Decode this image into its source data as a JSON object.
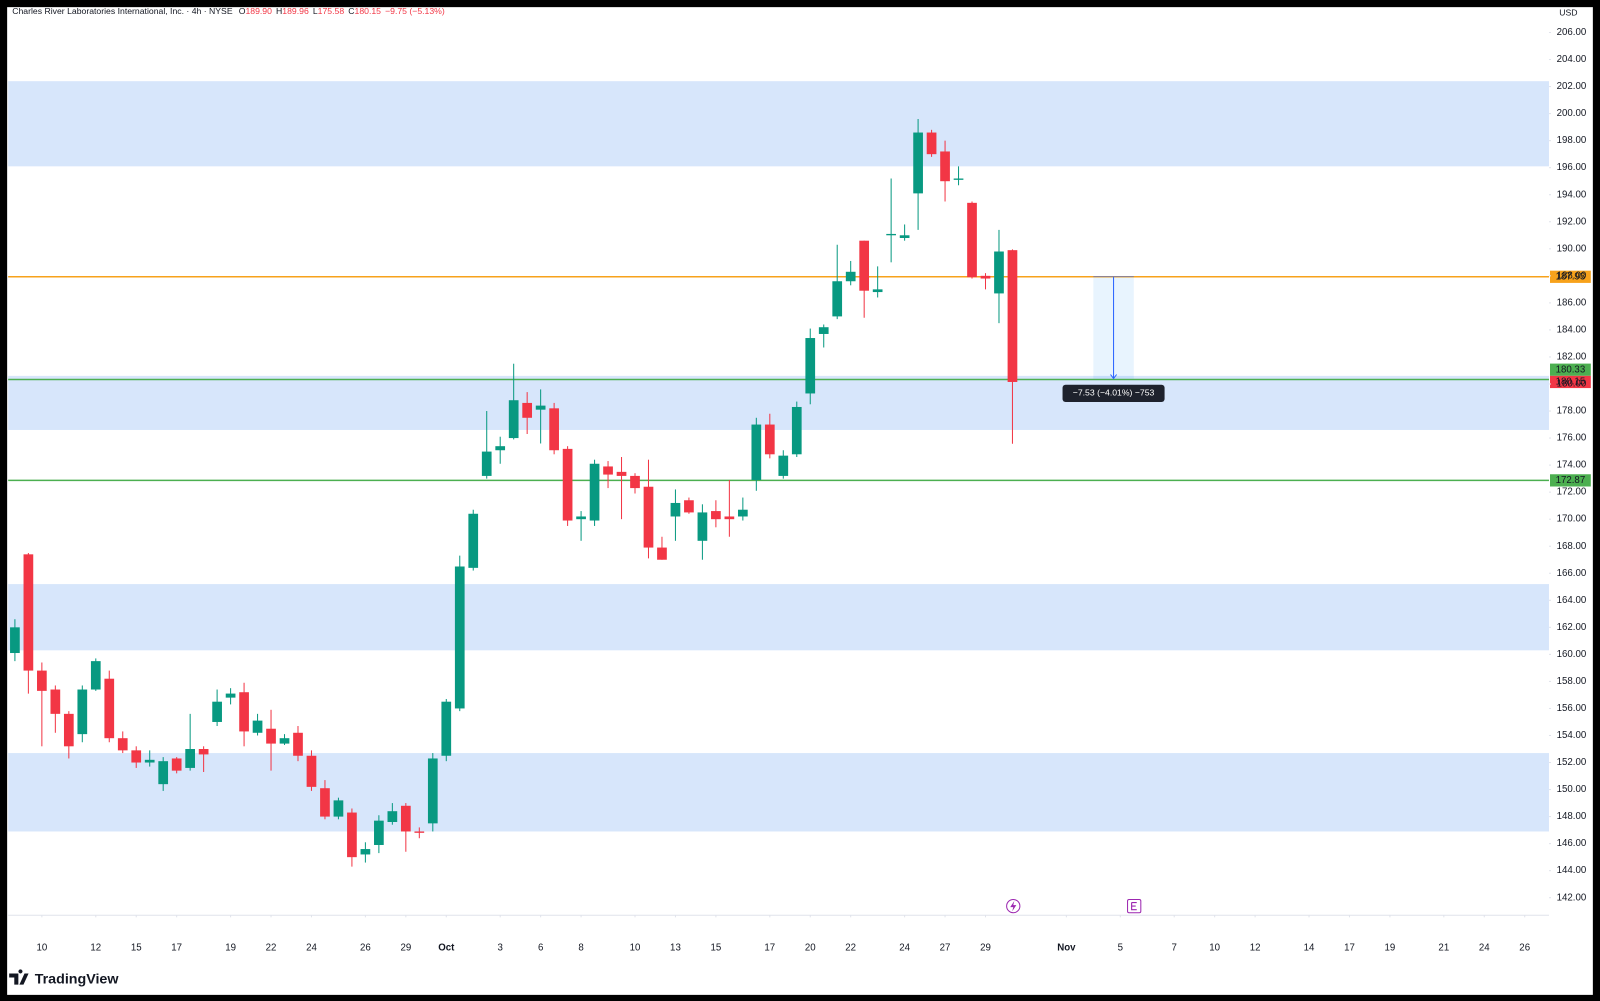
{
  "chart_data": {
    "type": "candlestick",
    "title": "Charles River Laboratories International, Inc. · 4h · NYSE",
    "ohlc_labels": [
      "O",
      "H",
      "L",
      "C"
    ],
    "ohlc_values": [
      "189.90",
      "189.96",
      "175.58",
      "180.15"
    ],
    "change": "−9.75 (−5.13%)",
    "currency": "USD",
    "open": [
      160.1,
      167.4,
      158.8,
      157.4,
      155.6,
      154.1,
      157.4,
      158.2,
      153.8,
      152.9,
      152.0,
      150.4,
      152.3,
      151.6,
      153.0,
      155.0,
      156.8,
      157.2,
      154.2,
      154.5,
      153.4,
      154.2,
      152.5,
      150.1,
      148.0,
      148.3,
      145.2,
      145.9,
      147.6,
      148.8,
      146.9,
      147.5,
      152.5,
      156.0,
      166.4,
      173.2,
      175.1,
      176.0,
      178.6,
      178.1,
      178.2,
      175.2,
      170.0,
      169.9,
      173.9,
      173.5,
      173.2,
      172.4,
      167.9,
      170.2,
      171.4,
      168.4,
      170.6,
      170.2,
      170.2,
      172.9,
      177.0,
      173.2,
      174.8,
      179.3,
      183.7,
      185.0,
      187.6,
      190.6,
      186.8,
      191.0,
      190.8,
      194.1,
      198.6,
      197.2,
      195.1,
      193.4,
      188.0,
      186.7,
      189.9
    ],
    "high": [
      162.6,
      167.5,
      159.4,
      157.7,
      155.8,
      157.7,
      159.7,
      158.8,
      154.3,
      153.2,
      152.9,
      152.4,
      152.4,
      155.6,
      153.2,
      157.4,
      157.5,
      157.9,
      155.6,
      155.9,
      154.1,
      154.7,
      152.9,
      150.7,
      149.4,
      148.6,
      146.1,
      148.1,
      149.0,
      149.0,
      147.2,
      152.7,
      156.7,
      167.3,
      170.7,
      178.0,
      176.1,
      181.5,
      179.4,
      179.6,
      178.6,
      175.4,
      170.6,
      174.4,
      174.3,
      174.6,
      173.4,
      174.4,
      168.7,
      172.2,
      171.6,
      171.1,
      171.4,
      172.9,
      171.6,
      177.5,
      177.8,
      175.1,
      178.7,
      184.1,
      184.4,
      190.3,
      189.1,
      190.6,
      188.7,
      195.2,
      191.8,
      199.6,
      198.8,
      198.0,
      196.1,
      193.5,
      188.2,
      191.4,
      189.96
    ],
    "low": [
      159.5,
      157.1,
      153.2,
      154.2,
      152.3,
      153.5,
      157.3,
      153.5,
      152.7,
      151.6,
      151.7,
      149.9,
      151.2,
      151.4,
      151.3,
      154.7,
      156.3,
      153.2,
      154.0,
      151.4,
      153.3,
      152.1,
      149.9,
      147.8,
      147.8,
      144.3,
      144.6,
      145.3,
      147.4,
      145.4,
      146.4,
      146.9,
      152.1,
      155.8,
      166.2,
      173.0,
      174.1,
      175.9,
      176.3,
      175.6,
      174.8,
      169.5,
      168.4,
      169.5,
      172.3,
      170.0,
      171.9,
      167.1,
      167.0,
      168.4,
      170.4,
      167.0,
      169.4,
      168.7,
      169.9,
      172.1,
      174.5,
      173.0,
      174.6,
      178.5,
      182.7,
      184.8,
      187.3,
      184.9,
      186.4,
      189.0,
      190.6,
      191.4,
      196.8,
      193.5,
      194.7,
      187.8,
      187.0,
      184.5,
      175.58
    ],
    "close": [
      162.0,
      158.8,
      157.3,
      155.6,
      153.2,
      157.4,
      159.5,
      153.8,
      152.9,
      152.0,
      152.2,
      152.1,
      151.4,
      153.0,
      152.6,
      156.5,
      157.1,
      154.3,
      155.1,
      153.4,
      153.8,
      152.5,
      150.2,
      148.0,
      149.2,
      145.0,
      145.6,
      147.7,
      148.4,
      146.9,
      146.8,
      152.3,
      156.5,
      166.5,
      170.4,
      175.0,
      175.4,
      178.8,
      177.5,
      178.4,
      175.1,
      169.9,
      170.2,
      174.1,
      173.3,
      173.2,
      172.3,
      167.9,
      167.0,
      171.2,
      170.5,
      170.5,
      170.0,
      170.0,
      170.7,
      177.0,
      174.8,
      174.7,
      178.3,
      183.4,
      184.2,
      187.6,
      188.3,
      186.9,
      187.0,
      191.1,
      191.0,
      198.6,
      197.0,
      195.0,
      195.2,
      187.9,
      187.8,
      189.8,
      180.15
    ],
    "up_color": "#089981",
    "down_color": "#f23645",
    "ylim": [
      140.7,
      207.8
    ],
    "yticks": [
      {
        "value": 142,
        "label": "142.00"
      },
      {
        "value": 144,
        "label": "144.00"
      },
      {
        "value": 146,
        "label": "146.00"
      },
      {
        "value": 148,
        "label": "148.00"
      },
      {
        "value": 150,
        "label": "150.00"
      },
      {
        "value": 152,
        "label": "152.00"
      },
      {
        "value": 154,
        "label": "154.00"
      },
      {
        "value": 156,
        "label": "156.00"
      },
      {
        "value": 158,
        "label": "158.00"
      },
      {
        "value": 160,
        "label": "160.00"
      },
      {
        "value": 162,
        "label": "162.00"
      },
      {
        "value": 164,
        "label": "164.00"
      },
      {
        "value": 166,
        "label": "166.00"
      },
      {
        "value": 168,
        "label": "168.00"
      },
      {
        "value": 170,
        "label": "170.00"
      },
      {
        "value": 172,
        "label": "172.00"
      },
      {
        "value": 174,
        "label": "174.00"
      },
      {
        "value": 176,
        "label": "176.00"
      },
      {
        "value": 178,
        "label": "178.00"
      },
      {
        "value": 180,
        "label": "180.00"
      },
      {
        "value": 182,
        "label": "182.00"
      },
      {
        "value": 184,
        "label": "184.00"
      },
      {
        "value": 186,
        "label": "186.00"
      },
      {
        "value": 188,
        "label": "188.00"
      },
      {
        "value": 190,
        "label": "190.00"
      },
      {
        "value": 192,
        "label": "192.00"
      },
      {
        "value": 194,
        "label": "194.00"
      },
      {
        "value": 196,
        "label": "196.00"
      },
      {
        "value": 198,
        "label": "198.00"
      },
      {
        "value": 200,
        "label": "200.00"
      },
      {
        "value": 202,
        "label": "202.00"
      },
      {
        "value": 204,
        "label": "204.00"
      },
      {
        "value": 206,
        "label": "206.00"
      }
    ],
    "xlim": [
      -0.5,
      113.8
    ],
    "xticks": [
      {
        "value": 2,
        "label": "10"
      },
      {
        "value": 6,
        "label": "12"
      },
      {
        "value": 9,
        "label": "15"
      },
      {
        "value": 12,
        "label": "17"
      },
      {
        "value": 16,
        "label": "19"
      },
      {
        "value": 19,
        "label": "22"
      },
      {
        "value": 22,
        "label": "24"
      },
      {
        "value": 26,
        "label": "26"
      },
      {
        "value": 29,
        "label": "29"
      },
      {
        "value": 32,
        "label": "Oct"
      },
      {
        "value": 36,
        "label": "3"
      },
      {
        "value": 39,
        "label": "6"
      },
      {
        "value": 42,
        "label": "8"
      },
      {
        "value": 46,
        "label": "10"
      },
      {
        "value": 49,
        "label": "13"
      },
      {
        "value": 52,
        "label": "15"
      },
      {
        "value": 56,
        "label": "17"
      },
      {
        "value": 59,
        "label": "20"
      },
      {
        "value": 62,
        "label": "22"
      },
      {
        "value": 66,
        "label": "24"
      },
      {
        "value": 69,
        "label": "27"
      },
      {
        "value": 72,
        "label": "29"
      },
      {
        "value": 78,
        "label": "Nov"
      },
      {
        "value": 82,
        "label": "5"
      },
      {
        "value": 86,
        "label": "7"
      },
      {
        "value": 89,
        "label": "10"
      },
      {
        "value": 92,
        "label": "12"
      },
      {
        "value": 96,
        "label": "14"
      },
      {
        "value": 99,
        "label": "17"
      },
      {
        "value": 102,
        "label": "19"
      },
      {
        "value": 106,
        "label": "21"
      },
      {
        "value": 109,
        "label": "24"
      },
      {
        "value": 112,
        "label": "26"
      }
    ],
    "grid": false,
    "zones": [
      {
        "from": 196.1,
        "to": 202.4
      },
      {
        "from": 176.6,
        "to": 180.6
      },
      {
        "from": 160.3,
        "to": 165.2
      },
      {
        "from": 146.9,
        "to": 152.7
      }
    ],
    "zone_color": "#d7e6fb",
    "levels": [
      {
        "value": 187.93,
        "color": "#f7a21b"
      },
      {
        "value": 180.33,
        "color": "#4caf50"
      },
      {
        "value": 172.87,
        "color": "#4caf50"
      }
    ],
    "measure": {
      "x": [
        80,
        83
      ],
      "from": 187.93,
      "to": 180.4,
      "label": "−7.53 (−4.01%) −753"
    }
  },
  "brand": "TradingView"
}
